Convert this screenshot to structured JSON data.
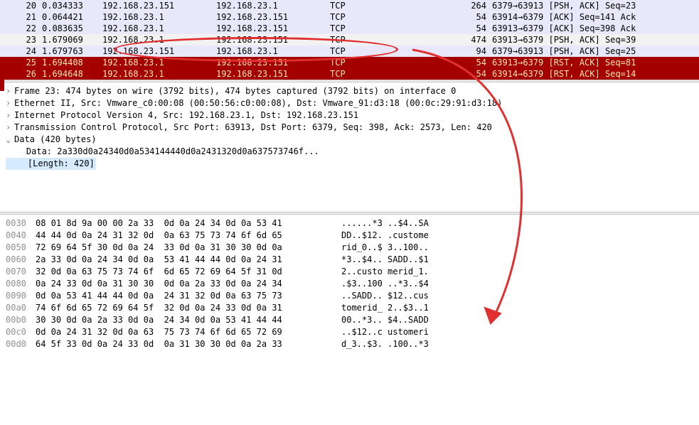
{
  "packets": {
    "rows": [
      {
        "no": "20",
        "time": "0.034333",
        "src": "192.168.23.151",
        "dst": "192.168.23.1",
        "proto": "TCP",
        "len": "264",
        "info": "6379→63913 [PSH, ACK] Seq=23",
        "cls": "row-lavender"
      },
      {
        "no": "21",
        "time": "0.064421",
        "src": "192.168.23.1",
        "dst": "192.168.23.151",
        "proto": "TCP",
        "len": "54",
        "info": "63914→6379 [ACK] Seq=141 Ack",
        "cls": "row-lavender"
      },
      {
        "no": "22",
        "time": "0.083635",
        "src": "192.168.23.1",
        "dst": "192.168.23.151",
        "proto": "TCP",
        "len": "54",
        "info": "63913→6379 [ACK] Seq=398 Ack",
        "cls": "row-lavender"
      },
      {
        "no": "23",
        "time": "1.679069",
        "src": "192.168.23.1",
        "dst": "192.168.23.151",
        "proto": "TCP",
        "len": "474",
        "info": "63913→6379 [PSH, ACK] Seq=39",
        "cls": "row-selected"
      },
      {
        "no": "24",
        "time": "1.679763",
        "src": "192.168.23.151",
        "dst": "192.168.23.1",
        "proto": "TCP",
        "len": "94",
        "info": "6379→63913 [PSH, ACK] Seq=25",
        "cls": "row-lavender"
      },
      {
        "no": "25",
        "time": "1.694408",
        "src": "192.168.23.1",
        "dst": "192.168.23.151",
        "proto": "TCP",
        "len": "54",
        "info": "63913→6379 [RST, ACK] Seq=81",
        "cls": "row-red"
      },
      {
        "no": "26",
        "time": "1.694648",
        "src": "192.168.23.1",
        "dst": "192.168.23.151",
        "proto": "TCP",
        "len": "54",
        "info": "63914→6379 [RST, ACK] Seq=14",
        "cls": "row-red"
      }
    ]
  },
  "details": {
    "frame": "Frame 23: 474 bytes on wire (3792 bits), 474 bytes captured (3792 bits) on interface 0",
    "eth": "Ethernet II, Src: Vmware_c0:00:08 (00:50:56:c0:00:08), Dst: Vmware_91:d3:18 (00:0c:29:91:d3:18)",
    "ip": "Internet Protocol Version 4, Src: 192.168.23.1, Dst: 192.168.23.151",
    "tcp": "Transmission Control Protocol, Src Port: 63913, Dst Port: 6379, Seq: 398, Ack: 2573, Len: 420",
    "data": "Data (420 bytes)",
    "datahex": "    Data: 2a330d0a24340d0a534144440d0a2431320d0a637573746f...",
    "length": "    [Length: 420]"
  },
  "hex": {
    "lines": [
      {
        "off": "0030",
        "b": "08 01 8d 9a 00 00 2a 33  0d 0a 24 34 0d 0a 53 41",
        "a": "......*3 ..$4..SA"
      },
      {
        "off": "0040",
        "b": "44 44 0d 0a 24 31 32 0d  0a 63 75 73 74 6f 6d 65",
        "a": "DD..$12. .custome"
      },
      {
        "off": "0050",
        "b": "72 69 64 5f 30 0d 0a 24  33 0d 0a 31 30 30 0d 0a",
        "a": "rid_0..$ 3..100.."
      },
      {
        "off": "0060",
        "b": "2a 33 0d 0a 24 34 0d 0a  53 41 44 44 0d 0a 24 31",
        "a": "*3..$4.. SADD..$1"
      },
      {
        "off": "0070",
        "b": "32 0d 0a 63 75 73 74 6f  6d 65 72 69 64 5f 31 0d",
        "a": "2..custo merid_1."
      },
      {
        "off": "0080",
        "b": "0a 24 33 0d 0a 31 30 30  0d 0a 2a 33 0d 0a 24 34",
        "a": ".$3..100 ..*3..$4"
      },
      {
        "off": "0090",
        "b": "0d 0a 53 41 44 44 0d 0a  24 31 32 0d 0a 63 75 73",
        "a": "..SADD.. $12..cus"
      },
      {
        "off": "00a0",
        "b": "74 6f 6d 65 72 69 64 5f  32 0d 0a 24 33 0d 0a 31",
        "a": "tomerid_ 2..$3..1"
      },
      {
        "off": "00b0",
        "b": "30 30 0d 0a 2a 33 0d 0a  24 34 0d 0a 53 41 44 44",
        "a": "00..*3.. $4..SADD"
      },
      {
        "off": "00c0",
        "b": "0d 0a 24 31 32 0d 0a 63  75 73 74 6f 6d 65 72 69",
        "a": "..$12..c ustomeri"
      },
      {
        "off": "00d0",
        "b": "64 5f 33 0d 0a 24 33 0d  0a 31 30 30 0d 0a 2a 33",
        "a": "d_3..$3. .100..*3"
      }
    ]
  },
  "annotation": {
    "ellipse_color": "#e03030",
    "arrow_color": "#e03030"
  }
}
